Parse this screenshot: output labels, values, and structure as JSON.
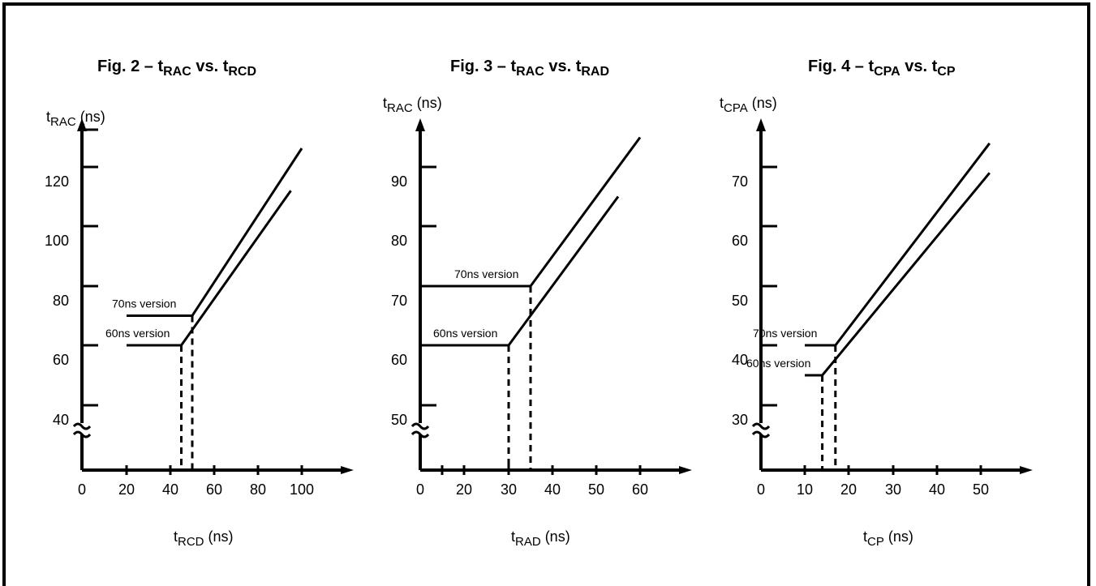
{
  "chart_data": [
    {
      "type": "line",
      "title": "Fig. 2 – tRAC vs. tRCD",
      "title_parts": [
        "Fig. 2 – t",
        "RAC",
        " vs. t",
        "RCD"
      ],
      "xlabel_parts": [
        "t",
        "RCD",
        " (ns)"
      ],
      "ylabel_parts": [
        "t",
        "RAC",
        " (ns)"
      ],
      "xlabel": "tRCD (ns)",
      "ylabel": "tRAC (ns)",
      "x_ticks": [
        0,
        20,
        40,
        60,
        80,
        100
      ],
      "y_ticks": [
        40,
        60,
        80,
        100,
        120
      ],
      "y_tick_marks": [
        40,
        60,
        80,
        100,
        120,
        140
      ],
      "xlim": [
        0,
        120
      ],
      "ylim": [
        20,
        160
      ],
      "axis_break": true,
      "series": [
        {
          "name": "70ns version",
          "x": [
            20,
            50,
            100
          ],
          "y": [
            70,
            70,
            130
          ],
          "drop_x": 50
        },
        {
          "name": "60ns version",
          "x": [
            20,
            45,
            95
          ],
          "y": [
            60,
            60,
            112
          ],
          "drop_x": 45
        }
      ]
    },
    {
      "type": "line",
      "title": "Fig. 3 – tRAC vs. tRAD",
      "title_parts": [
        "Fig. 3 – t",
        "RAC",
        " vs. t",
        "RAD"
      ],
      "xlabel_parts": [
        "t",
        "RAD",
        " (ns)"
      ],
      "ylabel_parts": [
        "t",
        "RAC",
        " (ns)"
      ],
      "xlabel": "tRAD (ns)",
      "ylabel": "tRAC (ns)",
      "x_ticks": [
        0,
        20,
        30,
        40,
        50,
        60
      ],
      "y_ticks": [
        50,
        60,
        70,
        80,
        90
      ],
      "y_tick_marks": [
        50,
        60,
        70,
        80,
        90
      ],
      "xlim": [
        0,
        70
      ],
      "ylim": [
        40,
        100
      ],
      "axis_break": true,
      "series": [
        {
          "name": "70ns version",
          "x": [
            6,
            35,
            60
          ],
          "y": [
            70,
            70,
            95
          ],
          "drop_x": 35
        },
        {
          "name": "60ns version",
          "x": [
            6,
            30,
            55
          ],
          "y": [
            60,
            60,
            85
          ],
          "drop_x": 30
        }
      ]
    },
    {
      "type": "line",
      "title": "Fig. 4 – tCPA vs. tCP",
      "title_parts": [
        "Fig. 4 – t",
        "CPA",
        " vs. t",
        "CP"
      ],
      "xlabel_parts": [
        "t",
        "CP",
        " (ns)"
      ],
      "ylabel_parts": [
        "t",
        "CPA",
        " (ns)"
      ],
      "xlabel": "tCP (ns)",
      "ylabel": "tCPA (ns)",
      "x_ticks": [
        0,
        10,
        20,
        30,
        40,
        50
      ],
      "y_ticks": [
        30,
        40,
        50,
        60,
        70
      ],
      "y_tick_marks": [
        30,
        40,
        50,
        60,
        70
      ],
      "xlim": [
        0,
        60
      ],
      "ylim": [
        20,
        80
      ],
      "axis_break": true,
      "series": [
        {
          "name": "70ns version",
          "x": [
            10,
            17,
            52
          ],
          "y": [
            40,
            40,
            74
          ],
          "drop_x": 17
        },
        {
          "name": "60ns version",
          "x": [
            10,
            14,
            52
          ],
          "y": [
            35,
            35,
            69
          ],
          "drop_x": 14
        }
      ]
    }
  ]
}
